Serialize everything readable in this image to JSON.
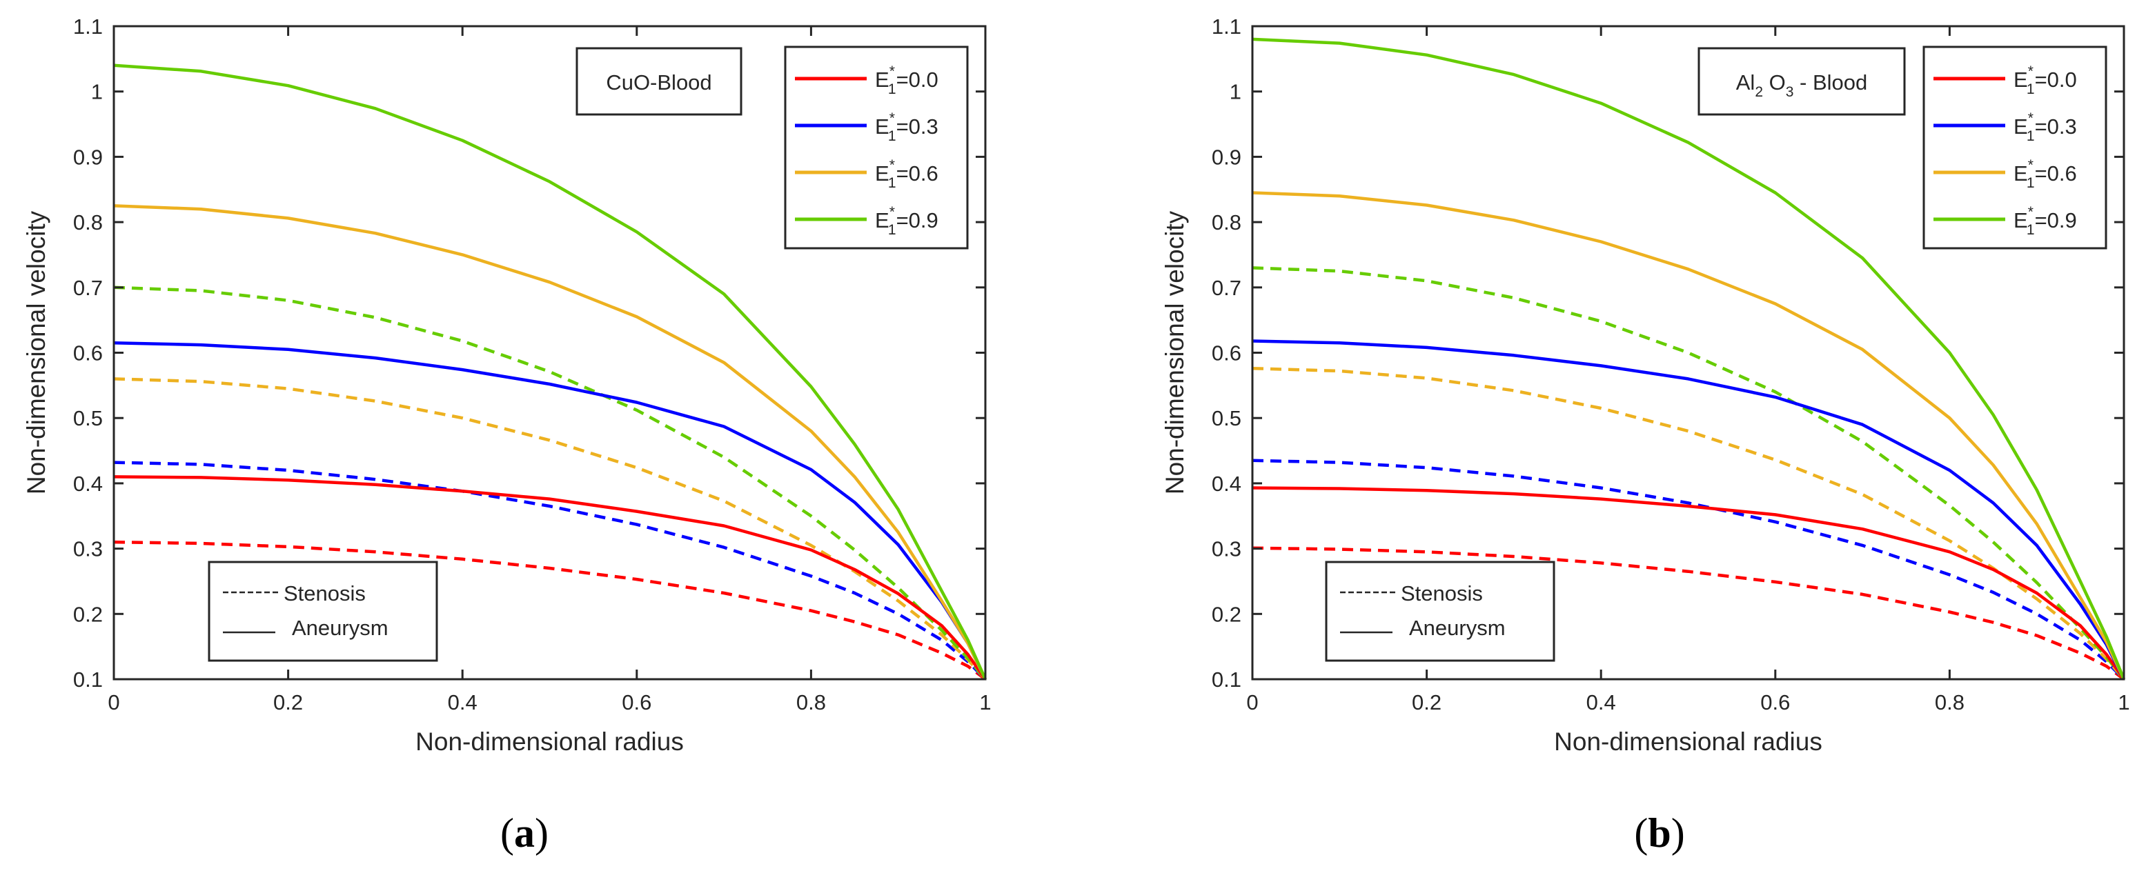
{
  "chart_data": [
    {
      "type": "line",
      "panel_label": "(a)",
      "annotation": "CuO-Blood",
      "xlabel": "Non-dimensional radius",
      "ylabel": "Non-dimensional velocity",
      "xlim": [
        0,
        1
      ],
      "ylim": [
        0.1,
        1.1
      ],
      "xticks": [
        0,
        0.2,
        0.4,
        0.6,
        0.8,
        1
      ],
      "xtick_labels": [
        "0",
        "0.2",
        "0.4",
        "0.6",
        "0.8",
        "1"
      ],
      "yticks": [
        0.1,
        0.2,
        0.3,
        0.4,
        0.5,
        0.6,
        0.7,
        0.8,
        0.9,
        1.0,
        1.1
      ],
      "ytick_labels": [
        "0.1",
        "0.2",
        "0.3",
        "0.4",
        "0.5",
        "0.6",
        "0.7",
        "0.8",
        "0.9",
        "1",
        "1.1"
      ],
      "legend_location": "top-right",
      "legend": [
        {
          "base": "E",
          "sub": "1",
          "sup": "*",
          "value": "=0.0",
          "color": "#ff0000"
        },
        {
          "base": "E",
          "sub": "1",
          "sup": "*",
          "value": "=0.3",
          "color": "#0000ff"
        },
        {
          "base": "E",
          "sub": "1",
          "sup": "*",
          "value": "=0.6",
          "color": "#edb120"
        },
        {
          "base": "E",
          "sub": "1",
          "sup": "*",
          "value": "=0.9",
          "color": "#66cc00"
        }
      ],
      "style_legend": {
        "location": "bottom-left",
        "items": [
          {
            "label": "Stenosis",
            "dash": true
          },
          {
            "label": "Aneurysm",
            "dash": false
          }
        ]
      },
      "series": [
        {
          "name": "E1*=0.0 Aneurysm",
          "color": "#ff0000",
          "dashed": false,
          "x": [
            0,
            0.1,
            0.2,
            0.3,
            0.4,
            0.5,
            0.6,
            0.7,
            0.8,
            0.85,
            0.9,
            0.95,
            0.98,
            1.0
          ],
          "y": [
            0.41,
            0.409,
            0.405,
            0.398,
            0.388,
            0.376,
            0.357,
            0.335,
            0.298,
            0.268,
            0.231,
            0.182,
            0.138,
            0.1
          ]
        },
        {
          "name": "E1*=0.3 Aneurysm",
          "color": "#0000ff",
          "dashed": false,
          "x": [
            0,
            0.1,
            0.2,
            0.3,
            0.4,
            0.5,
            0.6,
            0.7,
            0.8,
            0.85,
            0.9,
            0.95,
            0.98,
            1.0
          ],
          "y": [
            0.615,
            0.612,
            0.605,
            0.592,
            0.574,
            0.552,
            0.524,
            0.487,
            0.421,
            0.371,
            0.306,
            0.218,
            0.155,
            0.1
          ]
        },
        {
          "name": "E1*=0.6 Aneurysm",
          "color": "#edb120",
          "dashed": false,
          "x": [
            0,
            0.1,
            0.2,
            0.3,
            0.4,
            0.5,
            0.6,
            0.7,
            0.8,
            0.85,
            0.9,
            0.95,
            0.98,
            1.0
          ],
          "y": [
            0.825,
            0.82,
            0.806,
            0.783,
            0.75,
            0.708,
            0.655,
            0.585,
            0.48,
            0.41,
            0.325,
            0.22,
            0.155,
            0.1
          ]
        },
        {
          "name": "E1*=0.9 Aneurysm",
          "color": "#66cc00",
          "dashed": false,
          "x": [
            0,
            0.1,
            0.2,
            0.3,
            0.4,
            0.5,
            0.6,
            0.7,
            0.8,
            0.85,
            0.9,
            0.95,
            0.98,
            1.0
          ],
          "y": [
            1.04,
            1.031,
            1.009,
            0.974,
            0.925,
            0.862,
            0.785,
            0.69,
            0.548,
            0.46,
            0.36,
            0.235,
            0.16,
            0.1
          ]
        },
        {
          "name": "E1*=0.0 Stenosis",
          "color": "#ff0000",
          "dashed": true,
          "x": [
            0,
            0.1,
            0.2,
            0.3,
            0.4,
            0.5,
            0.6,
            0.7,
            0.8,
            0.85,
            0.9,
            0.95,
            0.98,
            1.0
          ],
          "y": [
            0.31,
            0.308,
            0.303,
            0.295,
            0.284,
            0.27,
            0.253,
            0.232,
            0.205,
            0.188,
            0.168,
            0.14,
            0.12,
            0.1
          ]
        },
        {
          "name": "E1*=0.3 Stenosis",
          "color": "#0000ff",
          "dashed": true,
          "x": [
            0,
            0.1,
            0.2,
            0.3,
            0.4,
            0.5,
            0.6,
            0.7,
            0.8,
            0.85,
            0.9,
            0.95,
            0.98,
            1.0
          ],
          "y": [
            0.432,
            0.429,
            0.42,
            0.406,
            0.388,
            0.365,
            0.337,
            0.302,
            0.258,
            0.232,
            0.2,
            0.16,
            0.127,
            0.1
          ]
        },
        {
          "name": "E1*=0.6 Stenosis",
          "color": "#edb120",
          "dashed": true,
          "x": [
            0,
            0.1,
            0.2,
            0.3,
            0.4,
            0.5,
            0.6,
            0.7,
            0.8,
            0.85,
            0.9,
            0.95,
            0.98,
            1.0
          ],
          "y": [
            0.56,
            0.556,
            0.545,
            0.526,
            0.5,
            0.466,
            0.424,
            0.373,
            0.305,
            0.265,
            0.22,
            0.168,
            0.13,
            0.1
          ]
        },
        {
          "name": "E1*=0.9 Stenosis",
          "color": "#66cc00",
          "dashed": true,
          "x": [
            0,
            0.1,
            0.2,
            0.3,
            0.4,
            0.5,
            0.6,
            0.7,
            0.8,
            0.85,
            0.9,
            0.95,
            0.98,
            1.0
          ],
          "y": [
            0.7,
            0.695,
            0.68,
            0.654,
            0.618,
            0.571,
            0.512,
            0.44,
            0.35,
            0.298,
            0.24,
            0.175,
            0.132,
            0.1
          ]
        }
      ]
    },
    {
      "type": "line",
      "panel_label": "(b)",
      "annotation": {
        "base": "Al",
        "sub": "2",
        "mid": " O",
        "sub2": "3",
        "tail": " - Blood"
      },
      "xlabel": "Non-dimensional radius",
      "ylabel": "Non-dimensional velocity",
      "xlim": [
        0,
        1
      ],
      "ylim": [
        0.1,
        1.1
      ],
      "xticks": [
        0,
        0.2,
        0.4,
        0.6,
        0.8,
        1
      ],
      "xtick_labels": [
        "0",
        "0.2",
        "0.4",
        "0.6",
        "0.8",
        "1"
      ],
      "yticks": [
        0.1,
        0.2,
        0.3,
        0.4,
        0.5,
        0.6,
        0.7,
        0.8,
        0.9,
        1.0,
        1.1
      ],
      "ytick_labels": [
        "0.1",
        "0.2",
        "0.3",
        "0.4",
        "0.5",
        "0.6",
        "0.7",
        "0.8",
        "0.9",
        "1",
        "1.1"
      ],
      "legend_location": "top-right",
      "legend": [
        {
          "base": "E",
          "sub": "1",
          "sup": "*",
          "value": "=0.0",
          "color": "#ff0000"
        },
        {
          "base": "E",
          "sub": "1",
          "sup": "*",
          "value": "=0.3",
          "color": "#0000ff"
        },
        {
          "base": "E",
          "sub": "1",
          "sup": "*",
          "value": "=0.6",
          "color": "#edb120"
        },
        {
          "base": "E",
          "sub": "1",
          "sup": "*",
          "value": "=0.9",
          "color": "#66cc00"
        }
      ],
      "style_legend": {
        "location": "bottom-left",
        "items": [
          {
            "label": "Stenosis",
            "dash": true
          },
          {
            "label": "Aneurysm",
            "dash": false
          }
        ]
      },
      "series": [
        {
          "name": "E1*=0.0 Aneurysm",
          "color": "#ff0000",
          "dashed": false,
          "x": [
            0,
            0.1,
            0.2,
            0.3,
            0.4,
            0.5,
            0.6,
            0.7,
            0.8,
            0.85,
            0.9,
            0.95,
            0.98,
            1.0
          ],
          "y": [
            0.393,
            0.392,
            0.389,
            0.384,
            0.376,
            0.365,
            0.352,
            0.33,
            0.295,
            0.268,
            0.232,
            0.182,
            0.138,
            0.1
          ]
        },
        {
          "name": "E1*=0.3 Aneurysm",
          "color": "#0000ff",
          "dashed": false,
          "x": [
            0,
            0.1,
            0.2,
            0.3,
            0.4,
            0.5,
            0.6,
            0.7,
            0.8,
            0.85,
            0.9,
            0.95,
            0.98,
            1.0
          ],
          "y": [
            0.618,
            0.615,
            0.608,
            0.596,
            0.58,
            0.56,
            0.532,
            0.49,
            0.42,
            0.37,
            0.305,
            0.215,
            0.153,
            0.1
          ]
        },
        {
          "name": "E1*=0.6 Aneurysm",
          "color": "#edb120",
          "dashed": false,
          "x": [
            0,
            0.1,
            0.2,
            0.3,
            0.4,
            0.5,
            0.6,
            0.7,
            0.8,
            0.85,
            0.9,
            0.95,
            0.98,
            1.0
          ],
          "y": [
            0.845,
            0.84,
            0.826,
            0.803,
            0.77,
            0.728,
            0.675,
            0.605,
            0.5,
            0.428,
            0.338,
            0.225,
            0.157,
            0.1
          ]
        },
        {
          "name": "E1*=0.9 Aneurysm",
          "color": "#66cc00",
          "dashed": false,
          "x": [
            0,
            0.1,
            0.2,
            0.3,
            0.4,
            0.5,
            0.6,
            0.7,
            0.8,
            0.85,
            0.9,
            0.95,
            0.98,
            1.0
          ],
          "y": [
            1.08,
            1.074,
            1.056,
            1.026,
            0.982,
            0.922,
            0.845,
            0.745,
            0.6,
            0.505,
            0.39,
            0.25,
            0.165,
            0.1
          ]
        },
        {
          "name": "E1*=0.0 Stenosis",
          "color": "#ff0000",
          "dashed": true,
          "x": [
            0,
            0.1,
            0.2,
            0.3,
            0.4,
            0.5,
            0.6,
            0.7,
            0.8,
            0.85,
            0.9,
            0.95,
            0.98,
            1.0
          ],
          "y": [
            0.301,
            0.299,
            0.295,
            0.288,
            0.278,
            0.265,
            0.249,
            0.23,
            0.203,
            0.187,
            0.167,
            0.14,
            0.12,
            0.1
          ]
        },
        {
          "name": "E1*=0.3 Stenosis",
          "color": "#0000ff",
          "dashed": true,
          "x": [
            0,
            0.1,
            0.2,
            0.3,
            0.4,
            0.5,
            0.6,
            0.7,
            0.8,
            0.85,
            0.9,
            0.95,
            0.98,
            1.0
          ],
          "y": [
            0.435,
            0.432,
            0.424,
            0.411,
            0.393,
            0.37,
            0.341,
            0.305,
            0.26,
            0.233,
            0.2,
            0.16,
            0.127,
            0.1
          ]
        },
        {
          "name": "E1*=0.6 Stenosis",
          "color": "#edb120",
          "dashed": true,
          "x": [
            0,
            0.1,
            0.2,
            0.3,
            0.4,
            0.5,
            0.6,
            0.7,
            0.8,
            0.85,
            0.9,
            0.95,
            0.98,
            1.0
          ],
          "y": [
            0.576,
            0.572,
            0.561,
            0.542,
            0.515,
            0.48,
            0.436,
            0.383,
            0.312,
            0.27,
            0.223,
            0.17,
            0.131,
            0.1
          ]
        },
        {
          "name": "E1*=0.9 Stenosis",
          "color": "#66cc00",
          "dashed": true,
          "x": [
            0,
            0.1,
            0.2,
            0.3,
            0.4,
            0.5,
            0.6,
            0.7,
            0.8,
            0.85,
            0.9,
            0.95,
            0.98,
            1.0
          ],
          "y": [
            0.73,
            0.725,
            0.71,
            0.684,
            0.648,
            0.6,
            0.54,
            0.464,
            0.366,
            0.31,
            0.248,
            0.178,
            0.134,
            0.1
          ]
        }
      ]
    }
  ]
}
